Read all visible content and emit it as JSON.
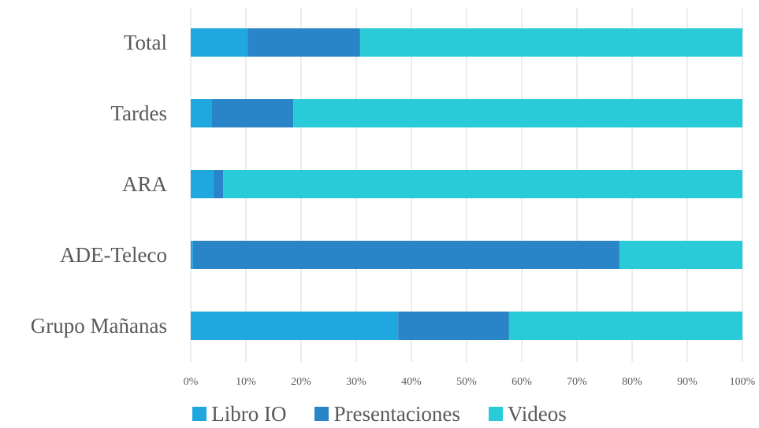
{
  "chart_data": {
    "type": "bar",
    "orientation": "horizontal",
    "stacked": "100%",
    "categories": [
      "Total",
      "Tardes",
      "ARA",
      "ADE-Teleco",
      "Grupo Mañanas"
    ],
    "series": [
      {
        "name": "Libro IO",
        "color": "#1fa8e0",
        "values": [
          10.3,
          3.8,
          4.1,
          0.4,
          37.6
        ]
      },
      {
        "name": "Presentaciones",
        "color": "#2a84c8",
        "values": [
          20.4,
          14.8,
          1.8,
          77.3,
          20.1
        ]
      },
      {
        "name": "Videos",
        "color": "#29cbd8",
        "values": [
          69.3,
          81.4,
          94.1,
          22.3,
          42.3
        ]
      }
    ],
    "x_ticks": [
      "0%",
      "10%",
      "20%",
      "30%",
      "40%",
      "50%",
      "60%",
      "70%",
      "80%",
      "90%",
      "100%"
    ],
    "xlim": [
      0,
      100
    ],
    "grid": true,
    "legend_position": "bottom"
  }
}
